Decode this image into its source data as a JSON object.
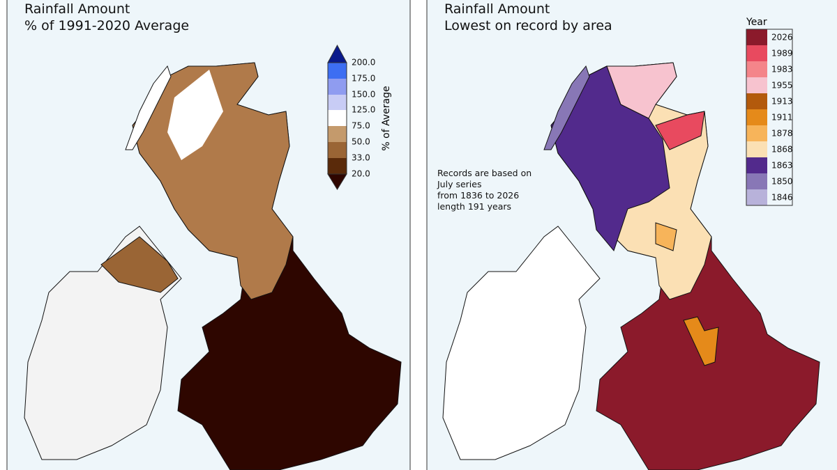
{
  "left_panel": {
    "title": "Rainfall Amount",
    "subtitle": "% of 1991-2020 Average",
    "colorbar": {
      "label": "% of Average",
      "ticks": [
        "200.0",
        "175.0",
        "150.0",
        "125.0",
        "75.0",
        "50.0",
        "33.0",
        "20.0"
      ]
    }
  },
  "right_panel": {
    "title": "Rainfall Amount",
    "subtitle": "Lowest on record by area",
    "legend": {
      "title": "Year",
      "entries": [
        "2026",
        "1989",
        "1983",
        "1955",
        "1913",
        "1911",
        "1878",
        "1868",
        "1863",
        "1850",
        "1846"
      ]
    },
    "note": [
      "Records are based on",
      "July series",
      "from 1836 to 2026",
      "length 191 years"
    ]
  }
}
